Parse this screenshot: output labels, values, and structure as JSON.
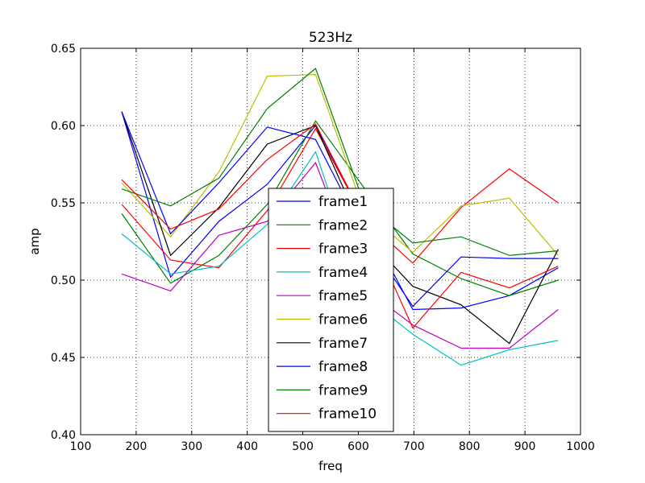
{
  "chart_data": {
    "type": "line",
    "title": "523Hz",
    "xlabel": "freq",
    "ylabel": "amp",
    "xlim": [
      100,
      1000
    ],
    "ylim": [
      0.4,
      0.65
    ],
    "xticks": [
      100,
      200,
      300,
      400,
      500,
      600,
      700,
      800,
      900,
      1000
    ],
    "yticks": [
      0.4,
      0.45,
      0.5,
      0.55,
      0.6,
      0.65
    ],
    "xtick_labels": [
      "100",
      "200",
      "300",
      "400",
      "500",
      "600",
      "700",
      "800",
      "900",
      "1000"
    ],
    "ytick_labels": [
      "0.40",
      "0.45",
      "0.50",
      "0.55",
      "0.60",
      "0.65"
    ],
    "grid": true,
    "legend_position": "lower-center",
    "x": [
      174,
      262,
      349,
      436,
      523,
      610,
      698,
      785,
      872,
      960
    ],
    "series": [
      {
        "name": "frame1",
        "color": "#0000ff",
        "values": [
          0.609,
          0.502,
          0.538,
          0.562,
          0.6,
          0.54,
          0.481,
          0.482,
          0.49,
          0.508
        ]
      },
      {
        "name": "frame2",
        "color": "#008000",
        "values": [
          0.543,
          0.498,
          0.516,
          0.549,
          0.603,
          0.56,
          0.517,
          0.501,
          0.49,
          0.5
        ]
      },
      {
        "name": "frame3",
        "color": "#ff0000",
        "values": [
          0.549,
          0.513,
          0.508,
          0.545,
          0.598,
          0.54,
          0.511,
          0.547,
          0.572,
          0.55
        ]
      },
      {
        "name": "frame4",
        "color": "#00bfbf",
        "values": [
          0.53,
          0.504,
          0.509,
          0.536,
          0.583,
          0.49,
          0.465,
          0.445,
          0.455,
          0.461
        ]
      },
      {
        "name": "frame5",
        "color": "#bf00bf",
        "values": [
          0.504,
          0.493,
          0.529,
          0.538,
          0.576,
          0.495,
          0.471,
          0.456,
          0.456,
          0.481
        ]
      },
      {
        "name": "frame6",
        "color": "#bfbf00",
        "values": [
          0.563,
          0.528,
          0.57,
          0.632,
          0.633,
          0.545,
          0.518,
          0.548,
          0.553,
          0.516
        ]
      },
      {
        "name": "frame7",
        "color": "#000000",
        "values": [
          0.609,
          0.516,
          0.547,
          0.588,
          0.6,
          0.53,
          0.496,
          0.484,
          0.459,
          0.52
        ]
      },
      {
        "name": "frame8",
        "color": "#0000ff",
        "values": [
          0.609,
          0.53,
          0.563,
          0.599,
          0.591,
          0.53,
          0.483,
          0.515,
          0.514,
          0.514
        ]
      },
      {
        "name": "frame9",
        "color": "#008000",
        "values": [
          0.559,
          0.548,
          0.566,
          0.611,
          0.637,
          0.55,
          0.524,
          0.528,
          0.516,
          0.519
        ]
      },
      {
        "name": "frame10",
        "color": "#ff0000",
        "values": [
          0.565,
          0.533,
          0.546,
          0.578,
          0.601,
          0.54,
          0.469,
          0.505,
          0.495,
          0.509
        ]
      }
    ]
  }
}
